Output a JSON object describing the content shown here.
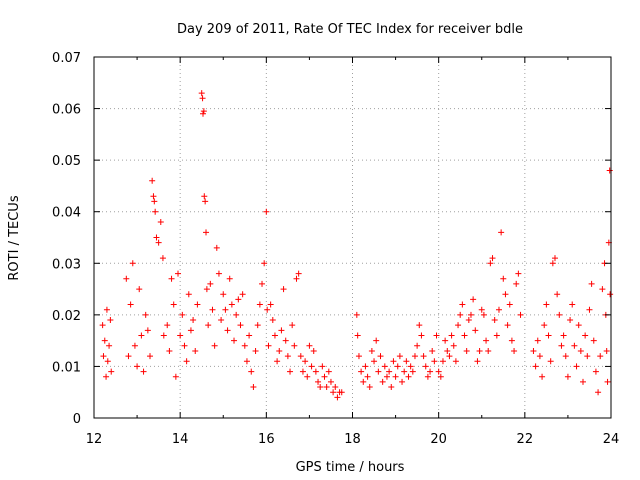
{
  "chart_data": {
    "type": "scatter",
    "title": "Day 209 of 2011, Rate Of TEC Index for receiver bdle",
    "xlabel": "GPS time / hours",
    "ylabel": "ROTI / TECUs",
    "xlim": [
      12,
      24
    ],
    "ylim": [
      0,
      0.07
    ],
    "xticks": [
      12,
      14,
      16,
      18,
      20,
      22,
      24
    ],
    "xtick_labels": [
      "12",
      "14",
      "16",
      "18",
      "20",
      "22",
      "24"
    ],
    "yticks": [
      0,
      0.01,
      0.02,
      0.03,
      0.04,
      0.05,
      0.06,
      0.07
    ],
    "ytick_labels": [
      "0",
      "0.01",
      "0.02",
      "0.03",
      "0.04",
      "0.05",
      "0.06",
      "0.07"
    ],
    "grid": true,
    "marker": "plus",
    "color": "#ff0000",
    "series": [
      {
        "name": "ROTI",
        "points": [
          [
            12.2,
            0.018
          ],
          [
            12.22,
            0.012
          ],
          [
            12.25,
            0.015
          ],
          [
            12.28,
            0.008
          ],
          [
            12.3,
            0.021
          ],
          [
            12.32,
            0.011
          ],
          [
            12.35,
            0.014
          ],
          [
            12.38,
            0.019
          ],
          [
            12.4,
            0.009
          ],
          [
            12.75,
            0.027
          ],
          [
            12.8,
            0.012
          ],
          [
            12.85,
            0.022
          ],
          [
            12.9,
            0.03
          ],
          [
            12.95,
            0.014
          ],
          [
            13.0,
            0.01
          ],
          [
            13.05,
            0.025
          ],
          [
            13.1,
            0.016
          ],
          [
            13.15,
            0.009
          ],
          [
            13.2,
            0.02
          ],
          [
            13.25,
            0.017
          ],
          [
            13.3,
            0.012
          ],
          [
            13.35,
            0.046
          ],
          [
            13.38,
            0.043
          ],
          [
            13.4,
            0.042
          ],
          [
            13.42,
            0.04
          ],
          [
            13.45,
            0.035
          ],
          [
            13.5,
            0.034
          ],
          [
            13.55,
            0.038
          ],
          [
            13.6,
            0.031
          ],
          [
            13.62,
            0.016
          ],
          [
            13.7,
            0.018
          ],
          [
            13.75,
            0.013
          ],
          [
            13.8,
            0.027
          ],
          [
            13.85,
            0.022
          ],
          [
            13.9,
            0.008
          ],
          [
            13.95,
            0.028
          ],
          [
            14.0,
            0.016
          ],
          [
            14.05,
            0.02
          ],
          [
            14.1,
            0.014
          ],
          [
            14.15,
            0.011
          ],
          [
            14.2,
            0.024
          ],
          [
            14.25,
            0.017
          ],
          [
            14.3,
            0.019
          ],
          [
            14.35,
            0.013
          ],
          [
            14.4,
            0.022
          ],
          [
            14.5,
            0.063
          ],
          [
            14.52,
            0.062
          ],
          [
            14.53,
            0.059
          ],
          [
            14.55,
            0.0595
          ],
          [
            14.56,
            0.043
          ],
          [
            14.58,
            0.042
          ],
          [
            14.6,
            0.036
          ],
          [
            14.62,
            0.025
          ],
          [
            14.65,
            0.018
          ],
          [
            14.7,
            0.026
          ],
          [
            14.75,
            0.021
          ],
          [
            14.8,
            0.014
          ],
          [
            14.85,
            0.033
          ],
          [
            14.9,
            0.028
          ],
          [
            14.95,
            0.019
          ],
          [
            15.0,
            0.024
          ],
          [
            15.05,
            0.021
          ],
          [
            15.1,
            0.017
          ],
          [
            15.15,
            0.027
          ],
          [
            15.2,
            0.022
          ],
          [
            15.25,
            0.015
          ],
          [
            15.3,
            0.02
          ],
          [
            15.35,
            0.023
          ],
          [
            15.4,
            0.018
          ],
          [
            15.45,
            0.024
          ],
          [
            15.5,
            0.014
          ],
          [
            15.55,
            0.011
          ],
          [
            15.6,
            0.016
          ],
          [
            15.65,
            0.009
          ],
          [
            15.7,
            0.006
          ],
          [
            15.75,
            0.013
          ],
          [
            15.8,
            0.018
          ],
          [
            15.85,
            0.022
          ],
          [
            15.9,
            0.026
          ],
          [
            15.95,
            0.03
          ],
          [
            16.0,
            0.04
          ],
          [
            16.02,
            0.021
          ],
          [
            16.05,
            0.014
          ],
          [
            16.1,
            0.022
          ],
          [
            16.15,
            0.019
          ],
          [
            16.2,
            0.016
          ],
          [
            16.25,
            0.011
          ],
          [
            16.3,
            0.013
          ],
          [
            16.35,
            0.017
          ],
          [
            16.4,
            0.025
          ],
          [
            16.45,
            0.015
          ],
          [
            16.5,
            0.012
          ],
          [
            16.55,
            0.009
          ],
          [
            16.6,
            0.018
          ],
          [
            16.65,
            0.014
          ],
          [
            16.7,
            0.027
          ],
          [
            16.75,
            0.028
          ],
          [
            16.8,
            0.012
          ],
          [
            16.85,
            0.009
          ],
          [
            16.9,
            0.011
          ],
          [
            16.95,
            0.008
          ],
          [
            17.0,
            0.014
          ],
          [
            17.05,
            0.01
          ],
          [
            17.1,
            0.013
          ],
          [
            17.15,
            0.009
          ],
          [
            17.2,
            0.007
          ],
          [
            17.25,
            0.006
          ],
          [
            17.3,
            0.01
          ],
          [
            17.35,
            0.008
          ],
          [
            17.4,
            0.006
          ],
          [
            17.45,
            0.009
          ],
          [
            17.5,
            0.007
          ],
          [
            17.55,
            0.005
          ],
          [
            17.6,
            0.006
          ],
          [
            17.65,
            0.004
          ],
          [
            17.7,
            0.005
          ],
          [
            17.75,
            0.005
          ],
          [
            18.1,
            0.02
          ],
          [
            18.12,
            0.016
          ],
          [
            18.15,
            0.012
          ],
          [
            18.2,
            0.009
          ],
          [
            18.25,
            0.007
          ],
          [
            18.3,
            0.01
          ],
          [
            18.35,
            0.008
          ],
          [
            18.4,
            0.006
          ],
          [
            18.45,
            0.013
          ],
          [
            18.5,
            0.011
          ],
          [
            18.55,
            0.015
          ],
          [
            18.6,
            0.009
          ],
          [
            18.65,
            0.012
          ],
          [
            18.7,
            0.007
          ],
          [
            18.75,
            0.01
          ],
          [
            18.8,
            0.008
          ],
          [
            18.85,
            0.009
          ],
          [
            18.9,
            0.006
          ],
          [
            18.95,
            0.011
          ],
          [
            19.0,
            0.008
          ],
          [
            19.05,
            0.01
          ],
          [
            19.1,
            0.012
          ],
          [
            19.15,
            0.007
          ],
          [
            19.2,
            0.009
          ],
          [
            19.25,
            0.011
          ],
          [
            19.3,
            0.008
          ],
          [
            19.35,
            0.01
          ],
          [
            19.4,
            0.009
          ],
          [
            19.45,
            0.012
          ],
          [
            19.5,
            0.014
          ],
          [
            19.55,
            0.018
          ],
          [
            19.6,
            0.016
          ],
          [
            19.65,
            0.012
          ],
          [
            19.7,
            0.01
          ],
          [
            19.75,
            0.008
          ],
          [
            19.8,
            0.009
          ],
          [
            19.85,
            0.013
          ],
          [
            19.9,
            0.011
          ],
          [
            19.95,
            0.016
          ],
          [
            20.0,
            0.009
          ],
          [
            20.05,
            0.008
          ],
          [
            20.1,
            0.011
          ],
          [
            20.15,
            0.015
          ],
          [
            20.2,
            0.013
          ],
          [
            20.25,
            0.012
          ],
          [
            20.3,
            0.016
          ],
          [
            20.35,
            0.014
          ],
          [
            20.4,
            0.011
          ],
          [
            20.45,
            0.018
          ],
          [
            20.5,
            0.02
          ],
          [
            20.55,
            0.022
          ],
          [
            20.6,
            0.016
          ],
          [
            20.65,
            0.013
          ],
          [
            20.7,
            0.019
          ],
          [
            20.75,
            0.02
          ],
          [
            20.8,
            0.023
          ],
          [
            20.85,
            0.017
          ],
          [
            20.9,
            0.011
          ],
          [
            20.95,
            0.013
          ],
          [
            21.0,
            0.021
          ],
          [
            21.05,
            0.02
          ],
          [
            21.1,
            0.015
          ],
          [
            21.15,
            0.013
          ],
          [
            21.2,
            0.03
          ],
          [
            21.25,
            0.031
          ],
          [
            21.3,
            0.019
          ],
          [
            21.35,
            0.016
          ],
          [
            21.4,
            0.021
          ],
          [
            21.45,
            0.036
          ],
          [
            21.5,
            0.027
          ],
          [
            21.55,
            0.024
          ],
          [
            21.6,
            0.018
          ],
          [
            21.65,
            0.022
          ],
          [
            21.7,
            0.015
          ],
          [
            21.75,
            0.013
          ],
          [
            21.8,
            0.026
          ],
          [
            21.85,
            0.028
          ],
          [
            21.9,
            0.02
          ],
          [
            22.2,
            0.013
          ],
          [
            22.25,
            0.01
          ],
          [
            22.3,
            0.015
          ],
          [
            22.35,
            0.012
          ],
          [
            22.4,
            0.008
          ],
          [
            22.45,
            0.018
          ],
          [
            22.5,
            0.022
          ],
          [
            22.55,
            0.016
          ],
          [
            22.6,
            0.011
          ],
          [
            22.65,
            0.03
          ],
          [
            22.7,
            0.031
          ],
          [
            22.75,
            0.024
          ],
          [
            22.8,
            0.02
          ],
          [
            22.85,
            0.014
          ],
          [
            22.9,
            0.016
          ],
          [
            22.95,
            0.012
          ],
          [
            23.0,
            0.008
          ],
          [
            23.05,
            0.019
          ],
          [
            23.1,
            0.022
          ],
          [
            23.15,
            0.014
          ],
          [
            23.2,
            0.01
          ],
          [
            23.25,
            0.018
          ],
          [
            23.3,
            0.013
          ],
          [
            23.35,
            0.007
          ],
          [
            23.4,
            0.016
          ],
          [
            23.45,
            0.012
          ],
          [
            23.5,
            0.021
          ],
          [
            23.55,
            0.026
          ],
          [
            23.6,
            0.015
          ],
          [
            23.65,
            0.009
          ],
          [
            23.7,
            0.005
          ],
          [
            23.75,
            0.012
          ],
          [
            23.8,
            0.025
          ],
          [
            23.85,
            0.03
          ],
          [
            23.88,
            0.02
          ],
          [
            23.9,
            0.013
          ],
          [
            23.92,
            0.007
          ],
          [
            23.95,
            0.034
          ],
          [
            23.97,
            0.048
          ],
          [
            23.98,
            0.024
          ]
        ]
      }
    ]
  }
}
